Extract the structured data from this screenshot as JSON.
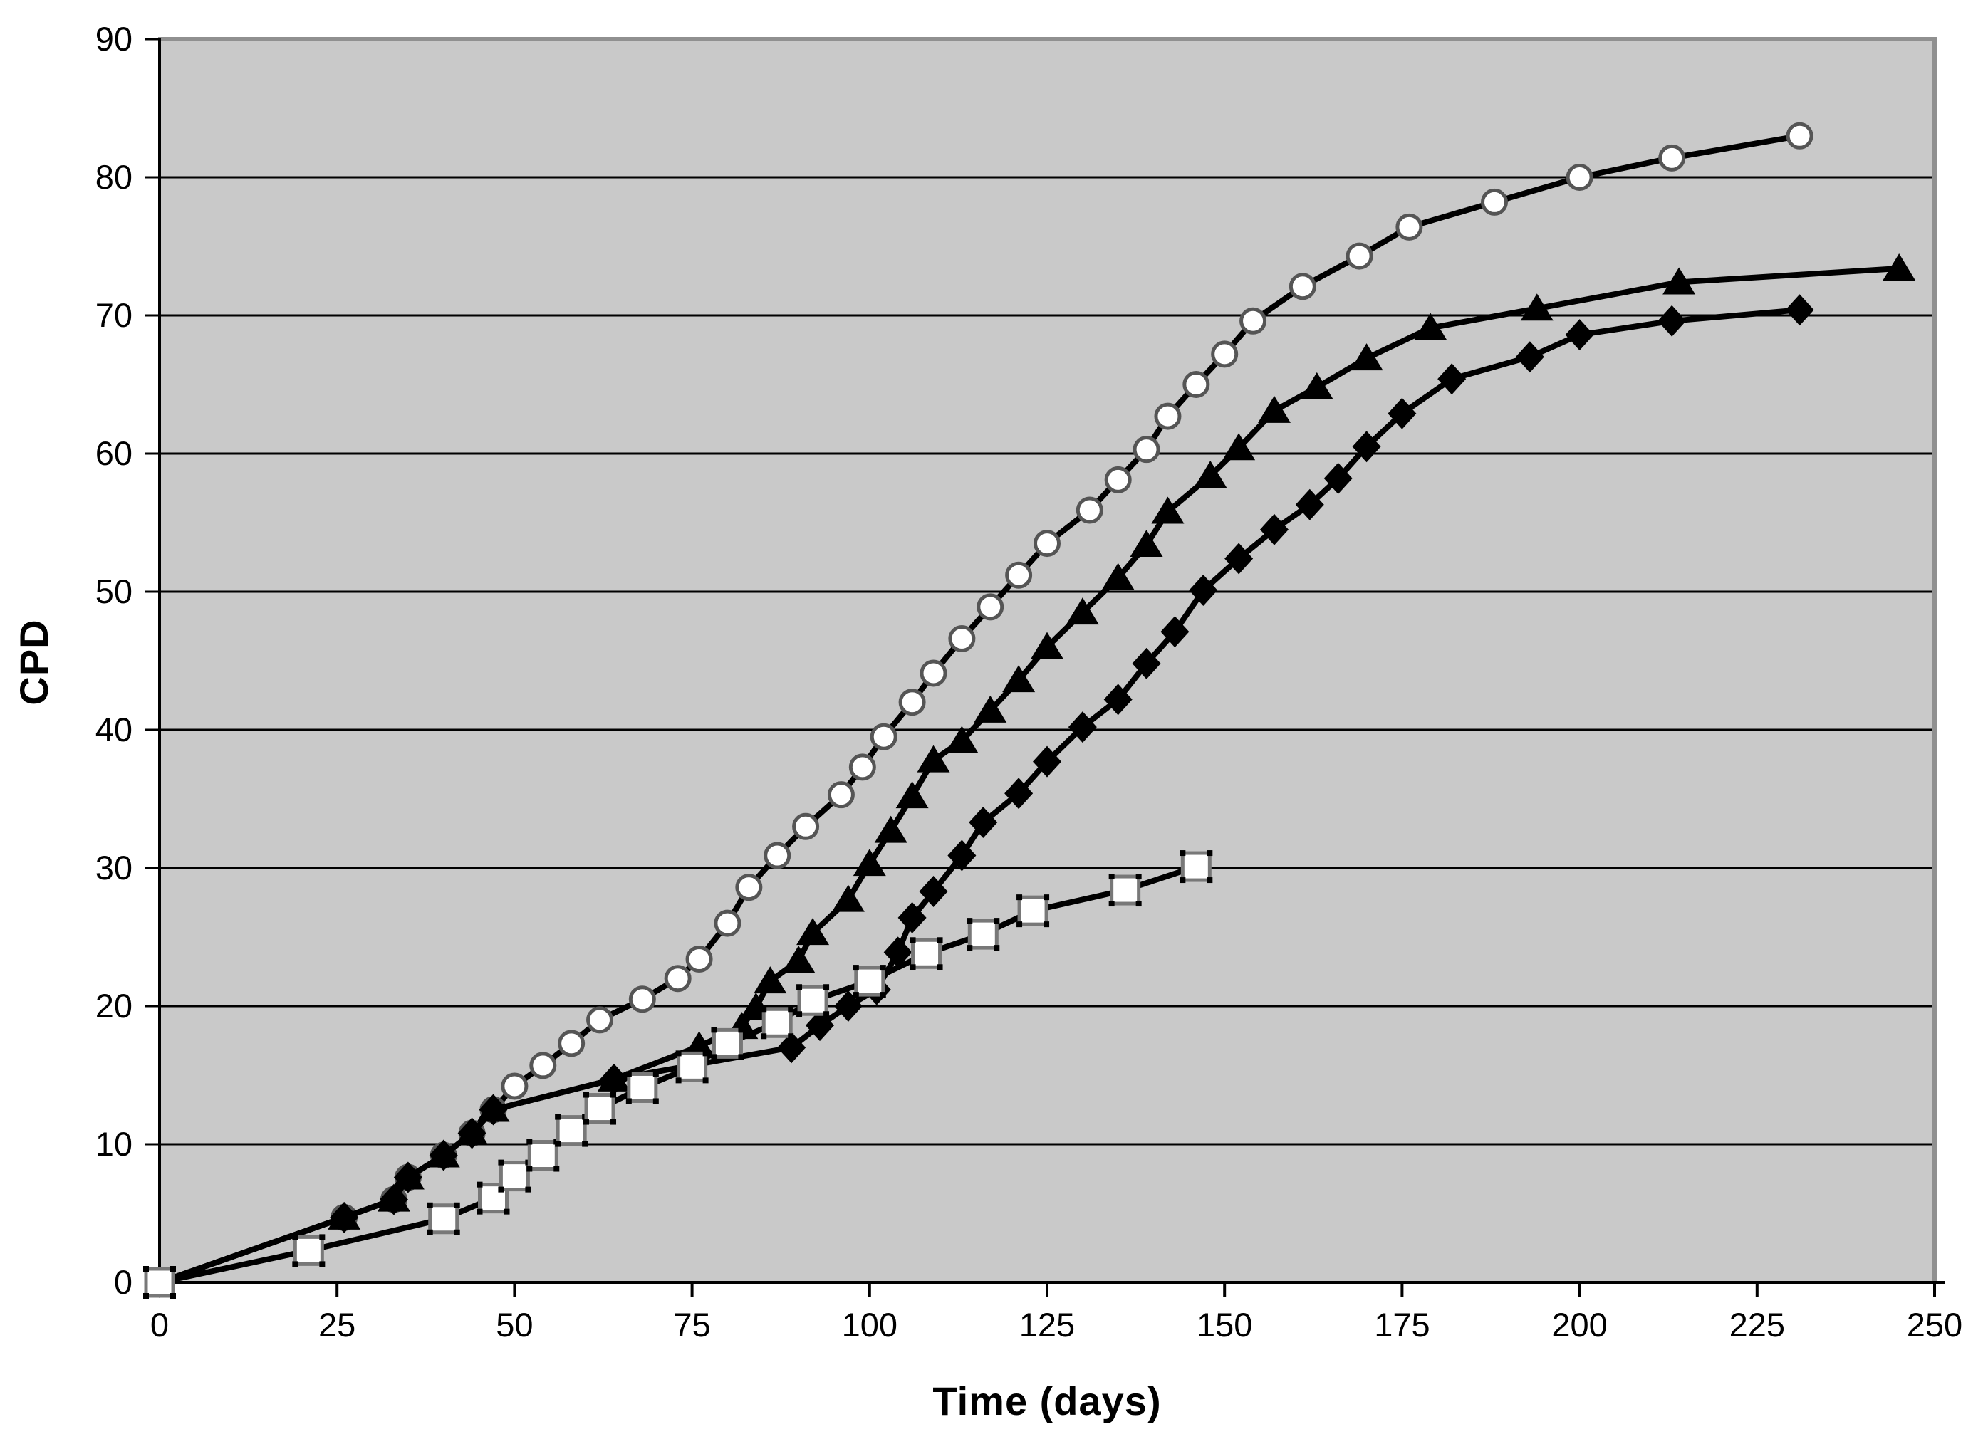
{
  "chart_data": {
    "type": "line",
    "title": "",
    "xlabel": "Time (days)",
    "ylabel": "CPD",
    "xlim": [
      0,
      250
    ],
    "ylim": [
      0,
      90
    ],
    "x_ticks": [
      0,
      25,
      50,
      75,
      100,
      125,
      150,
      175,
      200,
      225,
      250
    ],
    "y_ticks": [
      0,
      10,
      20,
      30,
      40,
      50,
      60,
      70,
      80,
      90
    ],
    "grid": "horizontal-only",
    "legend": "none",
    "colors": {
      "plot_bg": "#c9c9c9",
      "page_bg": "#ffffff",
      "gridline": "#000000",
      "frame": "#909090",
      "axis": "#000000",
      "line": "#000000",
      "open_marker_fill": "#ffffff",
      "open_marker_stroke": "#555555",
      "filled_marker": "#000000",
      "text": "#000000"
    },
    "series": [
      {
        "name": "open-circle-series",
        "marker": "circle-open",
        "x": [
          0,
          26,
          33,
          35,
          40,
          44,
          47,
          50,
          54,
          58,
          62,
          68,
          73,
          76,
          80,
          83,
          87,
          91,
          96,
          99,
          102,
          106,
          109,
          113,
          117,
          121,
          125,
          131,
          135,
          139,
          142,
          146,
          150,
          154,
          161,
          169,
          176,
          188,
          200,
          213,
          231
        ],
        "y": [
          0,
          4.7,
          6.0,
          7.6,
          9.2,
          10.8,
          12.5,
          14.2,
          15.7,
          17.3,
          19.0,
          20.5,
          22.0,
          23.4,
          26.0,
          28.6,
          30.9,
          33.0,
          35.3,
          37.3,
          39.5,
          42.0,
          44.1,
          46.6,
          48.9,
          51.2,
          53.5,
          55.9,
          58.1,
          60.3,
          62.7,
          65.0,
          67.2,
          69.6,
          72.1,
          74.3,
          76.4,
          78.2,
          80.0,
          81.4,
          83.0
        ]
      },
      {
        "name": "filled-triangle-series",
        "marker": "triangle-filled",
        "x": [
          0,
          26,
          33,
          35,
          40,
          44,
          47,
          64,
          76,
          82,
          84,
          86,
          90,
          92,
          97,
          100,
          103,
          106,
          109,
          113,
          117,
          121,
          125,
          130,
          135,
          139,
          142,
          148,
          152,
          157,
          163,
          170,
          179,
          194,
          214,
          245
        ],
        "y": [
          0,
          4.7,
          6.0,
          7.6,
          9.2,
          10.8,
          12.5,
          14.7,
          17.1,
          18.5,
          19.9,
          21.8,
          23.3,
          25.3,
          27.7,
          30.3,
          32.7,
          35.2,
          37.8,
          39.2,
          41.4,
          43.6,
          46.0,
          48.5,
          51.0,
          53.4,
          55.8,
          58.4,
          60.4,
          63.1,
          64.8,
          66.9,
          69.1,
          70.5,
          72.4,
          73.4
        ]
      },
      {
        "name": "filled-diamond-series",
        "marker": "diamond-filled",
        "x": [
          0,
          26,
          33,
          35,
          40,
          44,
          47,
          64,
          89,
          93,
          97,
          101,
          104,
          106,
          109,
          113,
          116,
          121,
          125,
          130,
          135,
          139,
          143,
          147,
          152,
          157,
          162,
          166,
          170,
          175,
          182,
          193,
          200,
          213,
          231
        ],
        "y": [
          0,
          4.7,
          6.0,
          7.6,
          9.2,
          10.8,
          12.5,
          14.7,
          17.0,
          18.6,
          20.0,
          21.2,
          23.9,
          26.4,
          28.3,
          30.9,
          33.3,
          35.4,
          37.7,
          40.2,
          42.2,
          44.8,
          47.1,
          50.1,
          52.4,
          54.5,
          56.3,
          58.2,
          60.5,
          62.9,
          65.4,
          67.0,
          68.6,
          69.6,
          70.4
        ]
      },
      {
        "name": "open-square-series",
        "marker": "square-open",
        "x": [
          0,
          21,
          40,
          47,
          50,
          54,
          58,
          62,
          68,
          75,
          80,
          87,
          92,
          100,
          108,
          116,
          123,
          136,
          146
        ],
        "y": [
          0,
          2.3,
          4.6,
          6.1,
          7.7,
          9.2,
          11.0,
          12.6,
          14.1,
          15.6,
          17.3,
          18.8,
          20.4,
          21.8,
          23.8,
          25.2,
          26.9,
          28.4,
          30.1
        ]
      }
    ]
  }
}
